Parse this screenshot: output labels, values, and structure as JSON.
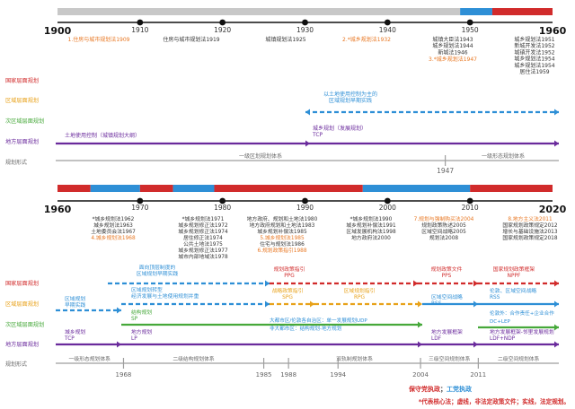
{
  "colors": {
    "national": "#d12b2b",
    "regional": "#e8a21a",
    "subregional": "#46a83a",
    "local": "#6a2a9c",
    "blue": "#2e8fd6",
    "gray": "#9e9e9e",
    "dark": "#333333",
    "orange": "#e87722"
  },
  "period1": {
    "start_label": "1900",
    "end_label": "1960",
    "ticks": [
      "1910",
      "1920",
      "1930",
      "1940",
      "1950"
    ],
    "laws": [
      {
        "lines": [
          "1.住房与城市规划法1909"
        ],
        "highlight": true
      },
      {
        "lines": [
          "住房与城市规划法1919"
        ],
        "highlight": false
      },
      {
        "lines": [
          "城镇规划法1925"
        ],
        "highlight": false
      },
      {
        "lines": [
          "2.*城乡规划法1932"
        ],
        "highlight": true
      },
      {
        "lines": [
          "城镇大臣法1943",
          "城乡规划法1944",
          "新城法1946"
        ],
        "highlight": false
      },
      {
        "lines": [
          "3.*城乡规划法1947"
        ],
        "highlight": true
      },
      {
        "lines": [
          "城乡规划法1951",
          "新城开发法1952",
          "城镇开发法1952",
          "城乡规划法1954",
          "城乡规划法1954",
          "居住法1959"
        ],
        "highlight": false
      }
    ],
    "row_labels": [
      "国家层面规划",
      "区域层面规划",
      "次区域层面规划",
      "地方层面规划"
    ],
    "regional_note_lines": [
      "以土地使用控制为主的",
      "区域规划早期实践"
    ],
    "local_plan1": "土地使用控制（城镇规划大纲）",
    "local_plan2_lines": [
      "城乡规划（发展规划）",
      "TCP"
    ],
    "form_label": "规划形式",
    "system1": "一级区划规划体系",
    "system2": "一级形态规划体系",
    "divider_year": "1947"
  },
  "period2": {
    "start_label": "1960",
    "end_label": "2020",
    "ticks": [
      "1970",
      "1980",
      "1990",
      "2000",
      "2010"
    ],
    "laws": [
      {
        "lines": [
          "*城乡规划法1962",
          "城乡规划法1963",
          "土地委员会法1967"
        ],
        "highlight": false
      },
      {
        "lines": [
          "4.城乡规划法1968"
        ],
        "highlight": true
      },
      {
        "lines": [
          "*城乡规划法1971",
          "城乡规划修正法1972",
          "城乡规划修正法1974",
          "居住修正法1974",
          "公共土地法1975",
          "城乡规划修正法1977",
          "城市内部地域法1978"
        ],
        "highlight": false
      },
      {
        "lines": [
          "地方政府、规划和土地法1980",
          "地方政府规划和土地法1983",
          "城乡规划补偿法1985"
        ],
        "highlight": false
      },
      {
        "lines": [
          "5.城乡规划法1985"
        ],
        "highlight": true
      },
      {
        "lines": [
          "住宅与规划法1986"
        ],
        "highlight": false
      },
      {
        "lines": [
          "6.规划政策指引1988"
        ],
        "highlight": true
      },
      {
        "lines": [
          "*城乡规划法1990",
          "城乡规划补偿法1991",
          "区域发展机构法1998",
          "地方政府法2000"
        ],
        "highlight": false
      },
      {
        "lines": [
          "7.规划与强制购买法2004"
        ],
        "highlight": true
      },
      {
        "lines": [
          "规划政策陈述2005",
          "区域空间战略2005",
          "规划法2008"
        ],
        "highlight": false
      },
      {
        "lines": [
          "8.地方主义法2011"
        ],
        "highlight": true
      },
      {
        "lines": [
          "国家规划政策规定2012",
          "增长与基础设施法2013",
          "国家规划政策规定2018"
        ],
        "highlight": false
      }
    ],
    "row_labels": [
      "国家层面规划",
      "区域层面规划",
      "次区域层面规划",
      "地方层面规划"
    ],
    "national_note_lines": [
      "面向顶层制度的",
      "区域规划早期实践"
    ],
    "ppg_lines": [
      "规划政策指引",
      "PPG"
    ],
    "pps_lines": [
      "规划政策文件",
      "PPS"
    ],
    "nppf_lines": [
      "国家规划政策框架",
      "NPPF"
    ],
    "regional_early": "区域规划",
    "regional_early2": "早期实践",
    "regional_transform_lines": [
      "区域规划转型",
      "经济发展与土地使用规划并重"
    ],
    "spg_lines": [
      "战略政策指引",
      "SPG"
    ],
    "rpg_lines": [
      "区域规划指引",
      "RPG"
    ],
    "rss_lines": [
      "区域空间战略",
      "RSS"
    ],
    "lep_lines": [
      "伦敦、区域空间战略",
      "RSS"
    ],
    "dc_line": "DC+LEP",
    "sp_lines": [
      "结构规划",
      "SP"
    ],
    "udp_label": "大都市区/伦敦各自治区：单一发展规划UDP",
    "non_metro": "非大都市区：结构规划-地方规划",
    "tcp_lines": [
      "城乡规划",
      "TCP"
    ],
    "lp_lines": [
      "地方规划",
      "LP"
    ],
    "ldf_lines": [
      "地方发展框架",
      "LDF"
    ],
    "ldf_ndp_lines": [
      "地方发展框架-邻里发展规划",
      "LDF+NDP"
    ],
    "lep_right": "伦敦外：合作责任+企业合作",
    "form_label": "规划形式",
    "systems": [
      "一级形态规划体系",
      "二级结构规划体系",
      "双轨制规划体系",
      "三级空间规划体系",
      "二级空间规划体系"
    ],
    "bottom_years": [
      "1968",
      "1985",
      "1988",
      "1994",
      "2004",
      "2011"
    ]
  },
  "legend": {
    "part1": "保守党执政",
    "sep": "；",
    "part2": "工党执政",
    "footnote": "*代表核心法；虚线，非法定政策文件；实线，法定规划。"
  }
}
